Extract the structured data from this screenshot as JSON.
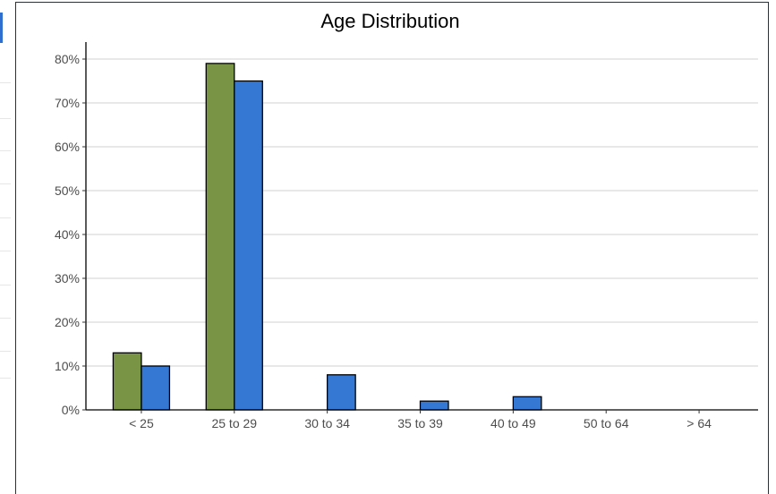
{
  "chart_data": {
    "type": "bar",
    "title": "Age Distribution",
    "xlabel": "",
    "ylabel": "",
    "categories": [
      "< 25",
      "25 to 29",
      "30 to 34",
      "35 to 39",
      "40 to 49",
      "50 to 64",
      "> 64"
    ],
    "series": [
      {
        "values": [
          13,
          79,
          0,
          0,
          0,
          0,
          0
        ],
        "color": "#7a9445"
      },
      {
        "values": [
          10,
          75,
          8,
          2,
          3,
          0,
          0
        ],
        "color": "#3478d4"
      }
    ],
    "ylim": [
      0,
      80
    ],
    "yticks": [
      0,
      10,
      20,
      30,
      40,
      50,
      60,
      70,
      80
    ],
    "ytick_labels": [
      "0%",
      "10%",
      "20%",
      "30%",
      "40%",
      "50%",
      "60%",
      "70%",
      "80%"
    ],
    "grid": true,
    "legend": "none"
  }
}
